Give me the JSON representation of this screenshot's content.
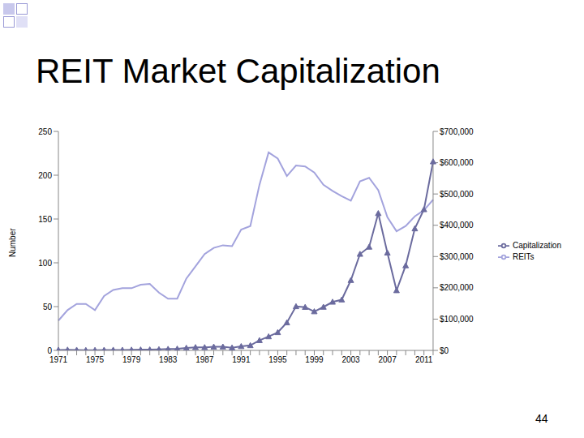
{
  "page_number": "44",
  "chart_data": {
    "type": "line",
    "title": "REIT Market Capitalization",
    "y_label": "Number",
    "categories": [
      "1971",
      null,
      null,
      null,
      "1975",
      null,
      null,
      null,
      "1979",
      null,
      null,
      null,
      "1983",
      null,
      null,
      null,
      "1987",
      null,
      null,
      null,
      "1991",
      null,
      null,
      null,
      "1995",
      null,
      null,
      null,
      "1999",
      null,
      null,
      null,
      "2003",
      null,
      null,
      null,
      "2007",
      null,
      null,
      null,
      "2011",
      null
    ],
    "series": [
      {
        "name": "REITs",
        "color": "#a3a3dd",
        "marker": "none",
        "line_style": "solid",
        "values": [
          34,
          46,
          53,
          53,
          46,
          62,
          69,
          71,
          71,
          75,
          76,
          66,
          59,
          59,
          82,
          96,
          110,
          117,
          120,
          119,
          138,
          142,
          189,
          226,
          219,
          199,
          211,
          210,
          203,
          189,
          182,
          176,
          171,
          193,
          197,
          183,
          152,
          136,
          142,
          153,
          160,
          172
        ]
      },
      {
        "name": "Capitalization",
        "color": "#6b6b9e",
        "marker": "triangle",
        "line_style": "solid",
        "axis": "y2",
        "values": [
          1494,
          1881,
          1394,
          712,
          900,
          1308,
          1528,
          1412,
          1754,
          2299,
          2439,
          3299,
          4257,
          5085,
          7674,
          9924,
          9702,
          11435,
          11662,
          8737,
          12968,
          15912,
          32159,
          44306,
          57541,
          88776,
          140534,
          138301,
          124262,
          138715,
          154899,
          161937,
          224212,
          307895,
          330691,
          438071,
          312009,
          191651,
          271199,
          389295,
          450501,
          603415
        ]
      }
    ],
    "ylim": [
      0,
      250
    ],
    "yticks": [
      0,
      50,
      100,
      150,
      200,
      250
    ],
    "y2lim": [
      0,
      700000
    ],
    "y2ticks": [
      {
        "value": 0,
        "label": "$0"
      },
      {
        "value": 100000,
        "label": "$100,000"
      },
      {
        "value": 200000,
        "label": "$200,000"
      },
      {
        "value": 300000,
        "label": "$300,000"
      },
      {
        "value": 400000,
        "label": "$400,000"
      },
      {
        "value": 500000,
        "label": "$500,000"
      },
      {
        "value": 600000,
        "label": "$600,000"
      },
      {
        "value": 700000,
        "label": "$700,000"
      }
    ],
    "legend": "right",
    "grid": false
  }
}
